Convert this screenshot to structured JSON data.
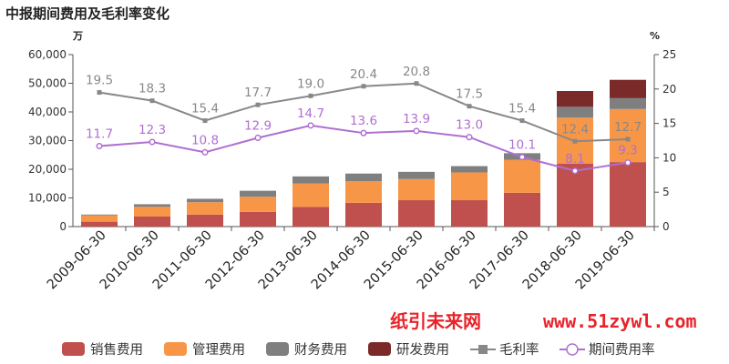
{
  "chart_data": {
    "type": "bar",
    "title": "中报期间费用及毛利率变化",
    "left_unit": "万",
    "right_unit": "%",
    "categories": [
      "2009-06-30",
      "2010-06-30",
      "2011-06-30",
      "2012-06-30",
      "2013-06-30",
      "2014-06-30",
      "2015-06-30",
      "2016-06-30",
      "2017-06-30",
      "2018-06-30",
      "2019-06-30"
    ],
    "ylim": [
      0,
      60000
    ],
    "yticks": [
      "0",
      "10,000",
      "20,000",
      "30,000",
      "40,000",
      "50,000",
      "60,000"
    ],
    "y2lim": [
      0,
      25
    ],
    "y2ticks": [
      "0",
      "5",
      "10",
      "15",
      "20",
      "25"
    ],
    "stack_series": [
      {
        "name": "销售费用",
        "color": "#c0504d",
        "values": [
          1700,
          3500,
          4200,
          5100,
          6900,
          8300,
          9200,
          9200,
          11800,
          22000,
          22500
        ]
      },
      {
        "name": "管理费用",
        "color": "#f79646",
        "values": [
          2200,
          3400,
          4300,
          5300,
          8100,
          7500,
          7400,
          9700,
          11500,
          16000,
          18500
        ]
      },
      {
        "name": "财务费用",
        "color": "#7f7f7f",
        "values": [
          300,
          900,
          1200,
          2100,
          2500,
          2700,
          2500,
          2200,
          2300,
          3800,
          3800
        ]
      },
      {
        "name": "研发费用",
        "color": "#7b2a2a",
        "values": [
          0,
          0,
          0,
          0,
          0,
          0,
          0,
          0,
          0,
          5500,
          6400
        ]
      }
    ],
    "line_series": [
      {
        "name": "毛利率",
        "color": "#888888",
        "marker": "square",
        "values": [
          19.5,
          18.3,
          15.4,
          17.7,
          19.0,
          20.4,
          20.8,
          17.5,
          15.4,
          12.4,
          12.7
        ],
        "labels": [
          "19.5",
          "18.3",
          "15.4",
          "17.7",
          "19.0",
          "20.4",
          "20.8",
          "17.5",
          "15.4",
          "12.4",
          "12.7"
        ]
      },
      {
        "name": "期间费用率",
        "color": "#b06fd2",
        "marker": "circle",
        "values": [
          11.7,
          12.3,
          10.8,
          12.9,
          14.7,
          13.6,
          13.9,
          13.0,
          10.1,
          8.1,
          9.3
        ],
        "labels": [
          "11.7",
          "12.3",
          "10.8",
          "12.9",
          "14.7",
          "13.6",
          "13.9",
          "13.0",
          "10.1",
          "8.1",
          "9.3"
        ]
      }
    ],
    "legend_position": "bottom",
    "grid": false
  },
  "watermark": {
    "cn": "纸引未来网",
    "url": "www.51zywl.com"
  }
}
